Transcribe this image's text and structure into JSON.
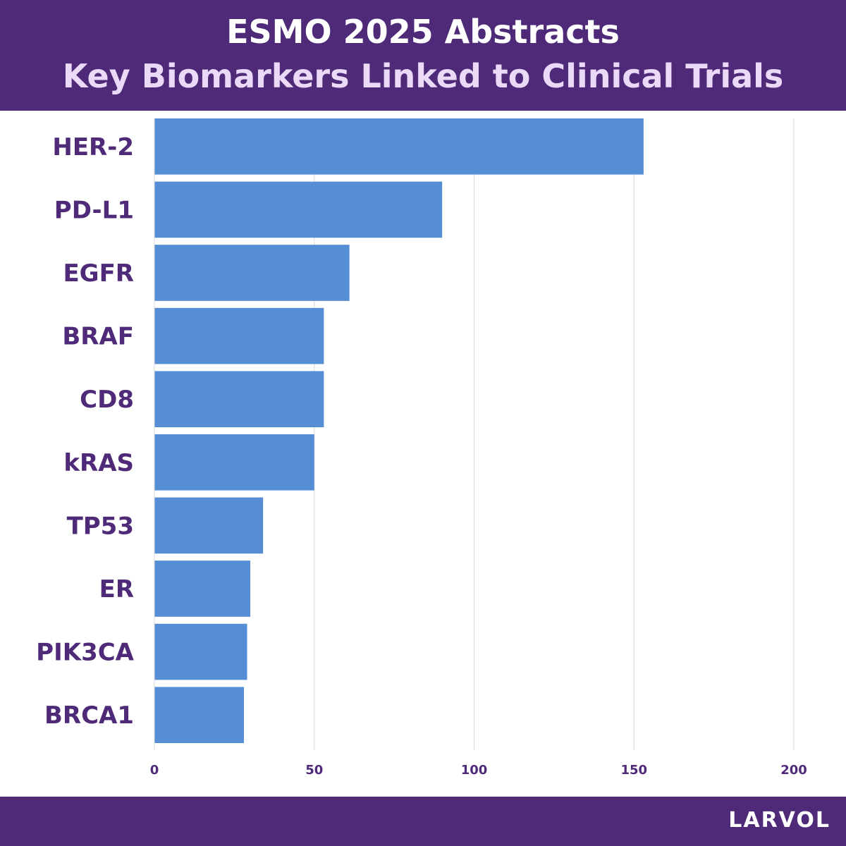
{
  "header": {
    "title": "ESMO 2025 Abstracts",
    "subtitle": "Key Biomarkers Linked to Clinical Trials"
  },
  "footer": {
    "brand": "LARVOL"
  },
  "colors": {
    "header_bg": "#4e2a78",
    "bar": "#558ed5",
    "label": "#4e2a78",
    "gridline": "#d9d9d9"
  },
  "chart_data": {
    "type": "bar",
    "orientation": "horizontal",
    "title": "ESMO 2025 Abstracts — Key Biomarkers Linked to Clinical Trials",
    "xlabel": "",
    "ylabel": "",
    "categories": [
      "HER-2",
      "PD-L1",
      "EGFR",
      "BRAF",
      "CD8",
      "kRAS",
      "TP53",
      "ER",
      "PIK3CA",
      "BRCA1"
    ],
    "values": [
      153,
      90,
      61,
      53,
      53,
      50,
      34,
      30,
      29,
      28
    ],
    "xlim": [
      0,
      200
    ],
    "ticks": [
      0,
      50,
      100,
      150,
      200
    ],
    "grid": true
  }
}
